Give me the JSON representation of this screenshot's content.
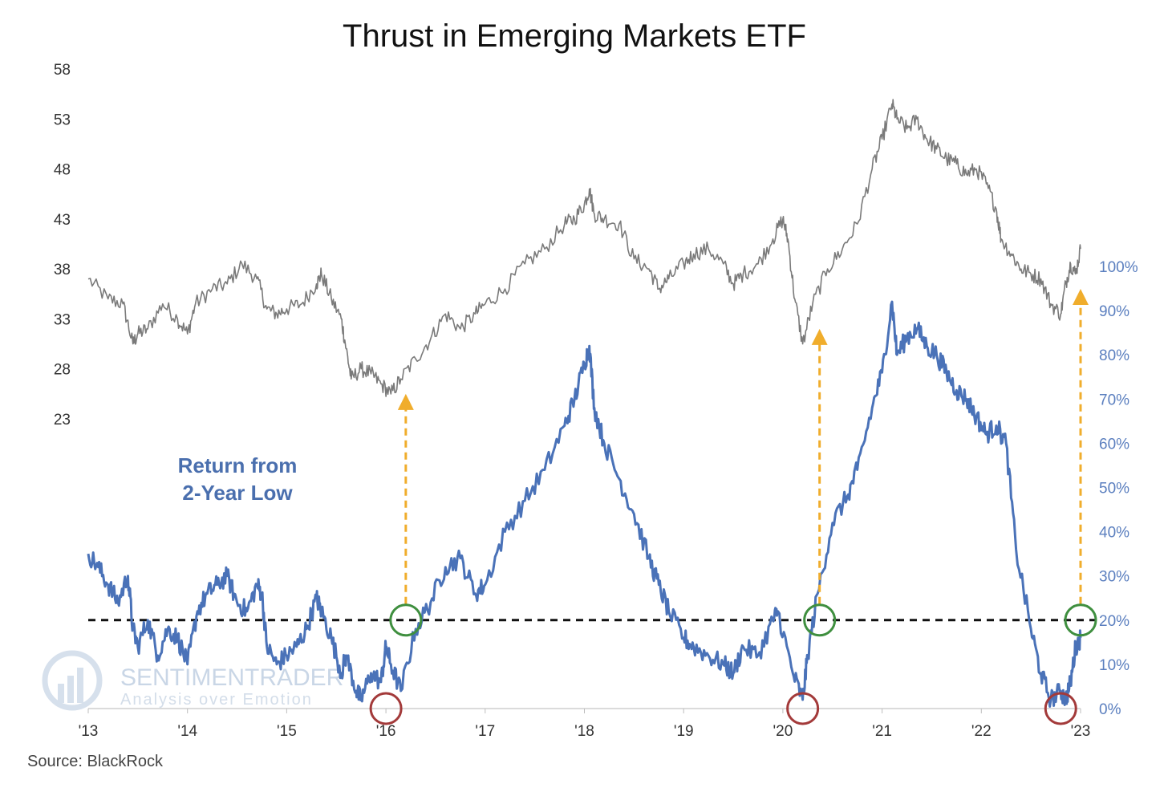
{
  "chart_data": {
    "type": "line",
    "title": "Thrust in Emerging Markets ETF",
    "source": "Source: BlackRock",
    "watermark": {
      "name": "SENTIMENTRADER",
      "tagline": "Analysis over Emotion"
    },
    "annotation": {
      "line1": "Return from",
      "line2": "2-Year Low"
    },
    "x_ticks": [
      "'13",
      "'14",
      "'15",
      "'16",
      "'17",
      "'18",
      "'19",
      "'20",
      "'21",
      "'22",
      "'23"
    ],
    "xlim": [
      2013.0,
      2023.0
    ],
    "left_axis": {
      "ticks": [
        "58",
        "53",
        "48",
        "43",
        "38",
        "33",
        "28",
        "23"
      ],
      "ylim": [
        23,
        58
      ]
    },
    "right_axis": {
      "ticks": [
        "100%",
        "90%",
        "80%",
        "70%",
        "60%",
        "50%",
        "40%",
        "30%",
        "20%",
        "10%",
        "0%"
      ],
      "ylim": [
        0,
        100
      ]
    },
    "threshold": {
      "value": 20,
      "style": "dashed",
      "color": "#111111"
    },
    "colors": {
      "price": "#7a7a7a",
      "returns": "#4a72b8",
      "threshold": "#111111",
      "arrow": "#f0ad2c",
      "low_marker": "#a33a3a",
      "signal_marker": "#3f8f3f"
    },
    "series": [
      {
        "axis": "left",
        "x": [
          2013.0,
          2013.2,
          2013.35,
          2013.45,
          2013.5,
          2013.6,
          2013.75,
          2013.9,
          2014.0,
          2014.08,
          2014.25,
          2014.4,
          2014.55,
          2014.7,
          2014.8,
          2014.9,
          2015.0,
          2015.15,
          2015.3,
          2015.35,
          2015.45,
          2015.55,
          2015.6,
          2015.65,
          2015.75,
          2015.85,
          2015.95,
          2016.05,
          2016.15,
          2016.3,
          2016.45,
          2016.6,
          2016.75,
          2016.9,
          2017.0,
          2017.2,
          2017.4,
          2017.6,
          2017.8,
          2017.9,
          2018.0,
          2018.05,
          2018.1,
          2018.2,
          2018.35,
          2018.5,
          2018.65,
          2018.75,
          2018.85,
          2019.0,
          2019.1,
          2019.25,
          2019.4,
          2019.5,
          2019.6,
          2019.75,
          2019.9,
          2020.0,
          2020.05,
          2020.12,
          2020.2,
          2020.3,
          2020.45,
          2020.6,
          2020.75,
          2020.9,
          2021.0,
          2021.1,
          2021.15,
          2021.25,
          2021.35,
          2021.45,
          2021.55,
          2021.65,
          2021.75,
          2021.85,
          2021.95,
          2022.05,
          2022.15,
          2022.2,
          2022.3,
          2022.4,
          2022.5,
          2022.6,
          2022.7,
          2022.8,
          2022.85,
          2022.9,
          2022.95,
          2023.0
        ],
        "values": [
          37.0,
          35.0,
          34.5,
          30.5,
          31.5,
          32.0,
          34.5,
          33.0,
          31.5,
          34.5,
          36.0,
          36.5,
          38.5,
          37.0,
          34.0,
          33.5,
          34.0,
          34.5,
          36.5,
          37.5,
          35.0,
          33.0,
          30.0,
          27.0,
          28.0,
          27.5,
          26.5,
          25.5,
          27.0,
          29.0,
          31.0,
          33.5,
          32.0,
          33.5,
          34.5,
          36.0,
          38.5,
          40.0,
          42.5,
          43.0,
          44.5,
          46.0,
          43.5,
          43.0,
          42.5,
          39.0,
          38.0,
          36.0,
          37.0,
          38.5,
          39.5,
          40.0,
          38.5,
          36.5,
          37.5,
          38.5,
          41.0,
          43.0,
          41.0,
          35.0,
          30.5,
          34.5,
          38.0,
          40.0,
          42.5,
          48.0,
          51.0,
          54.5,
          53.0,
          52.0,
          53.0,
          51.0,
          50.0,
          49.0,
          48.5,
          47.5,
          48.0,
          46.5,
          44.0,
          41.0,
          39.5,
          38.0,
          37.5,
          37.0,
          34.5,
          33.5,
          36.5,
          38.5,
          37.5,
          40.0
        ]
      },
      {
        "axis": "right",
        "x": [
          2013.0,
          2013.1,
          2013.2,
          2013.3,
          2013.4,
          2013.45,
          2013.5,
          2013.6,
          2013.7,
          2013.8,
          2013.9,
          2014.0,
          2014.1,
          2014.2,
          2014.3,
          2014.4,
          2014.5,
          2014.6,
          2014.7,
          2014.75,
          2014.8,
          2014.9,
          2015.0,
          2015.1,
          2015.2,
          2015.3,
          2015.35,
          2015.45,
          2015.55,
          2015.6,
          2015.7,
          2015.75,
          2015.85,
          2015.95,
          2016.0,
          2016.05,
          2016.15,
          2016.3,
          2016.45,
          2016.6,
          2016.75,
          2016.9,
          2017.0,
          2017.2,
          2017.4,
          2017.6,
          2017.8,
          2017.9,
          2018.0,
          2018.05,
          2018.1,
          2018.2,
          2018.35,
          2018.5,
          2018.65,
          2018.75,
          2018.85,
          2019.0,
          2019.1,
          2019.25,
          2019.4,
          2019.5,
          2019.6,
          2019.75,
          2019.9,
          2019.95,
          2020.1,
          2020.2,
          2020.25,
          2020.35,
          2020.5,
          2020.65,
          2020.75,
          2020.9,
          2021.0,
          2021.1,
          2021.15,
          2021.25,
          2021.35,
          2021.45,
          2021.55,
          2021.65,
          2021.75,
          2021.85,
          2021.95,
          2022.05,
          2022.15,
          2022.25,
          2022.35,
          2022.5,
          2022.6,
          2022.7,
          2022.8,
          2022.85,
          2022.9,
          2022.95,
          2023.0
        ],
        "values": [
          35,
          32,
          28,
          24,
          30,
          18,
          14,
          20,
          12,
          18,
          16,
          10,
          22,
          26,
          28,
          30,
          24,
          22,
          28,
          26,
          14,
          10,
          12,
          14,
          18,
          25,
          22,
          16,
          8,
          12,
          4,
          2,
          8,
          6,
          14,
          10,
          4,
          18,
          24,
          32,
          34,
          26,
          28,
          40,
          47,
          54,
          64,
          70,
          78,
          82,
          68,
          60,
          52,
          44,
          34,
          28,
          22,
          16,
          14,
          12,
          10,
          8,
          14,
          12,
          20,
          22,
          8,
          2,
          12,
          26,
          42,
          48,
          54,
          68,
          76,
          92,
          80,
          84,
          86,
          82,
          80,
          76,
          72,
          70,
          66,
          62,
          64,
          60,
          36,
          18,
          8,
          2,
          4,
          2,
          6,
          14,
          16
        ]
      }
    ],
    "low_markers_x": [
      2016.0,
      2020.2,
      2022.8
    ],
    "signal_markers_x": [
      2016.2,
      2020.37,
      2023.0
    ],
    "arrows": [
      {
        "x": 2016.2,
        "to_price": 25.5
      },
      {
        "x": 2020.37,
        "to_price": 32.0
      },
      {
        "x": 2023.0,
        "to_price": 36.0
      }
    ]
  }
}
